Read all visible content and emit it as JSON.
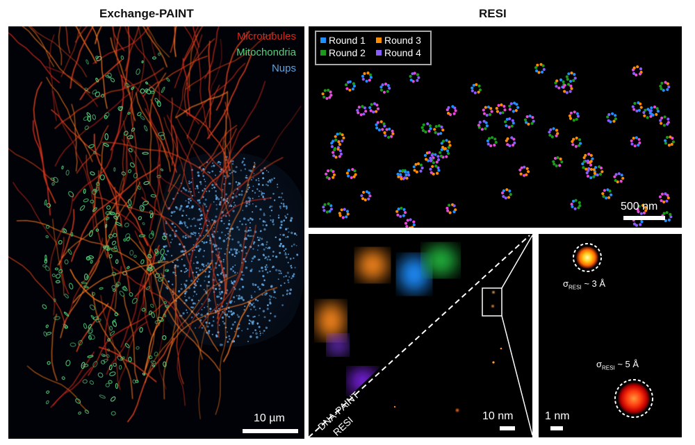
{
  "left_title": "Exchange-PAINT",
  "right_title": "RESI",
  "channels": [
    {
      "label": "Microtubules",
      "color": "#d42a1e"
    },
    {
      "label": "Mitochondria",
      "color": "#54cf7d"
    },
    {
      "label": "Nups",
      "color": "#5fa4de"
    }
  ],
  "left_scale": "10 µm",
  "legend": [
    {
      "label": "Round 1",
      "color": "#1e90ff"
    },
    {
      "label": "Round 3",
      "color": "#ff8c00"
    },
    {
      "label": "Round 2",
      "color": "#1a9b1a"
    },
    {
      "label": "Round 4",
      "color": "#8a5cff"
    }
  ],
  "top_right_scale": "500 nm",
  "middle_scale": "10 nm",
  "diag_label_top": "DNA-PAINT",
  "diag_label_bottom": "RESI",
  "right_scale": "1 nm",
  "sigma_small": {
    "prefix": "σ",
    "sub": "RESI",
    "suffix": " ~ 3 Å"
  },
  "sigma_large": {
    "prefix": "σ",
    "sub": "RESI",
    "suffix": " ~ 5 Å"
  }
}
